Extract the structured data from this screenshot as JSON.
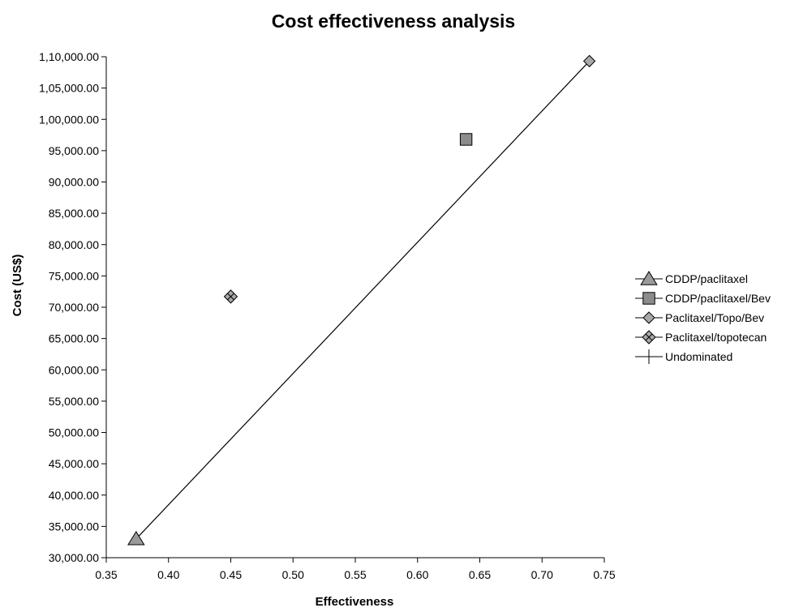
{
  "chart_data": {
    "type": "scatter",
    "title": "Cost effectiveness analysis",
    "xlabel": "Effectiveness",
    "ylabel": "Cost (US$)",
    "xlim": [
      0.35,
      0.75
    ],
    "ylim": [
      30000,
      110000
    ],
    "x_ticks": [
      0.35,
      0.4,
      0.45,
      0.5,
      0.55,
      0.6,
      0.65,
      0.7,
      0.75
    ],
    "x_tick_labels": [
      "0.35",
      "0.40",
      "0.45",
      "0.50",
      "0.55",
      "0.60",
      "0.65",
      "0.70",
      "0.75"
    ],
    "y_ticks": [
      30000,
      35000,
      40000,
      45000,
      50000,
      55000,
      60000,
      65000,
      70000,
      75000,
      80000,
      85000,
      90000,
      95000,
      100000,
      105000,
      110000
    ],
    "y_tick_labels": [
      "30,000.00",
      "35,000.00",
      "40,000.00",
      "45,000.00",
      "50,000.00",
      "55,000.00",
      "60,000.00",
      "65,000.00",
      "70,000.00",
      "75,000.00",
      "80,000.00",
      "85,000.00",
      "90,000.00",
      "95,000.00",
      "1,00,000.00",
      "1,05,000.00",
      "1,10,000.00"
    ],
    "grid": false,
    "legend_position": "right",
    "series": [
      {
        "name": "CDDP/paclitaxel",
        "marker": "triangle",
        "color": "#9a9a9a",
        "x": [
          0.374
        ],
        "y": [
          33000
        ]
      },
      {
        "name": "CDDP/paclitaxel/Bev",
        "marker": "square",
        "color": "#8c8c8c",
        "x": [
          0.639
        ],
        "y": [
          96800
        ]
      },
      {
        "name": "Paclitaxel/Topo/Bev",
        "marker": "diamond",
        "color": "#a8a8a8",
        "x": [
          0.738
        ],
        "y": [
          109300
        ]
      },
      {
        "name": "Paclitaxel/topotecan",
        "marker": "diamond-cross",
        "color": "#a8a8a8",
        "x": [
          0.45
        ],
        "y": [
          71700
        ]
      },
      {
        "name": "Undominated",
        "marker": "plus",
        "color": "#000000",
        "line": true,
        "x": [
          0.374,
          0.738
        ],
        "y": [
          33000,
          109300
        ]
      }
    ]
  }
}
